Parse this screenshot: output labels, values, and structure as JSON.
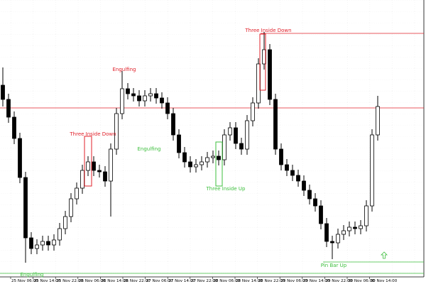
{
  "chart_data": {
    "type": "candlestick",
    "open": [
      280,
      260,
      235,
      205,
      150,
      65,
      50,
      55,
      60,
      55,
      62,
      78,
      95,
      120,
      135,
      160,
      172,
      160,
      158,
      145,
      190,
      240,
      275,
      268,
      265,
      258,
      265,
      268,
      262,
      255,
      240,
      210,
      185,
      172,
      165,
      168,
      172,
      178,
      180,
      175,
      210,
      220,
      198,
      190,
      230,
      255,
      310,
      330,
      260,
      190,
      168,
      160,
      153,
      145,
      132,
      120,
      110,
      85,
      60,
      58,
      70,
      75,
      80,
      78,
      82,
      110,
      210
    ],
    "high": [
      305,
      268,
      243,
      213,
      158,
      73,
      63,
      68,
      68,
      70,
      86,
      103,
      128,
      143,
      168,
      180,
      180,
      168,
      166,
      198,
      248,
      300,
      283,
      276,
      273,
      273,
      276,
      276,
      270,
      263,
      248,
      218,
      193,
      180,
      176,
      180,
      186,
      188,
      188,
      218,
      228,
      228,
      206,
      238,
      263,
      318,
      355,
      338,
      268,
      198,
      176,
      168,
      161,
      153,
      140,
      128,
      118,
      93,
      68,
      78,
      83,
      88,
      88,
      90,
      118,
      218,
      265
    ],
    "low": [
      250,
      227,
      197,
      142,
      30,
      42,
      42,
      47,
      47,
      47,
      54,
      70,
      87,
      112,
      127,
      152,
      152,
      150,
      137,
      95,
      182,
      232,
      260,
      257,
      250,
      250,
      257,
      254,
      247,
      232,
      202,
      177,
      164,
      157,
      157,
      160,
      164,
      170,
      167,
      167,
      202,
      190,
      182,
      182,
      222,
      247,
      302,
      252,
      182,
      160,
      152,
      145,
      137,
      124,
      112,
      102,
      77,
      52,
      35,
      50,
      62,
      67,
      70,
      70,
      74,
      102,
      202
    ],
    "close": [
      260,
      235,
      205,
      150,
      65,
      50,
      55,
      60,
      55,
      62,
      78,
      95,
      120,
      135,
      160,
      172,
      160,
      158,
      145,
      190,
      240,
      275,
      268,
      265,
      258,
      265,
      268,
      262,
      255,
      240,
      210,
      185,
      172,
      165,
      168,
      172,
      178,
      180,
      175,
      210,
      220,
      198,
      190,
      230,
      255,
      310,
      330,
      260,
      190,
      168,
      160,
      153,
      145,
      132,
      120,
      110,
      85,
      60,
      58,
      70,
      75,
      80,
      78,
      82,
      110,
      210,
      250
    ],
    "up_color": "#ffffff",
    "down_color": "#000000",
    "ylim": [
      10,
      400
    ],
    "levels": [
      {
        "value": 353,
        "color": "#e0202a"
      },
      {
        "value": 248,
        "color": "#e0202a"
      },
      {
        "value": 31,
        "color": "#3cbf3c"
      },
      {
        "value": 15,
        "color": "#3cbf3c"
      }
    ],
    "xtick_labels": [
      "25 Nov 06:00",
      "25 Nov 14:00",
      "25 Nov 22:00",
      "26 Nov 06:00",
      "26 Nov 14:00",
      "26 Nov 22:00",
      "27 Nov 06:00",
      "27 Nov 14:00",
      "27 Nov 22:00",
      "28 Nov 06:00",
      "28 Nov 14:00",
      "28 Nov 22:00",
      "29 Nov 06:00",
      "29 Nov 14:00",
      "29 Nov 22:00",
      "30 Nov 06:00",
      "30 Nov 14:00"
    ],
    "annotations": [
      "Three Inside Down",
      "Engulfing",
      "Three Inside Down",
      "Engulfing",
      "Three Inside Up",
      "Pin Bar Up",
      "Engulfing"
    ]
  }
}
